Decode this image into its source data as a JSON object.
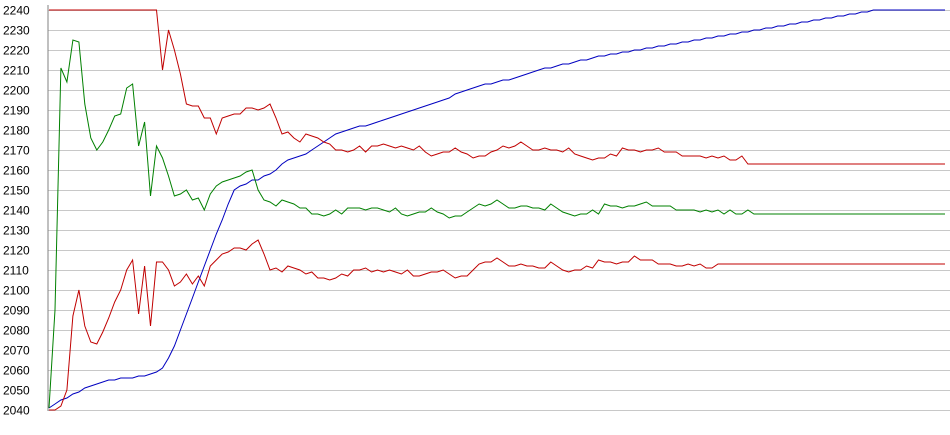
{
  "chart_data": {
    "type": "line",
    "title": "",
    "xlabel": "",
    "ylabel": "",
    "ylim": [
      2040,
      2240
    ],
    "yticks": [
      "2040",
      "2050",
      "2060",
      "2070",
      "2080",
      "2090",
      "2100",
      "2110",
      "2120",
      "2130",
      "2140",
      "2150",
      "2160",
      "2170",
      "2180",
      "2190",
      "2200",
      "2210",
      "2220",
      "2230",
      "2240"
    ],
    "grid": true,
    "x_count": 151,
    "series": [
      {
        "color": "#0000c0",
        "values": [
          2041,
          2043,
          2045,
          2046,
          2048,
          2049,
          2051,
          2052,
          2053,
          2054,
          2055,
          2055,
          2056,
          2056,
          2056,
          2057,
          2057,
          2058,
          2059,
          2061,
          2066,
          2072,
          2080,
          2088,
          2096,
          2104,
          2112,
          2120,
          2128,
          2135,
          2143,
          2150,
          2152,
          2153,
          2155,
          2155,
          2157,
          2158,
          2160,
          2163,
          2165,
          2166,
          2167,
          2168,
          2170,
          2172,
          2174,
          2176,
          2178,
          2179,
          2180,
          2181,
          2182,
          2182,
          2183,
          2184,
          2185,
          2186,
          2187,
          2188,
          2189,
          2190,
          2191,
          2192,
          2193,
          2194,
          2195,
          2196,
          2198,
          2199,
          2200,
          2201,
          2202,
          2203,
          2203,
          2204,
          2205,
          2205,
          2206,
          2207,
          2208,
          2209,
          2210,
          2211,
          2211,
          2212,
          2213,
          2213,
          2214,
          2215,
          2215,
          2216,
          2217,
          2217,
          2218,
          2218,
          2219,
          2219,
          2220,
          2220,
          2221,
          2221,
          2222,
          2222,
          2223,
          2223,
          2224,
          2224,
          2225,
          2225,
          2226,
          2226,
          2227,
          2227,
          2228,
          2228,
          2229,
          2229,
          2230,
          2230,
          2231,
          2231,
          2232,
          2232,
          2233,
          2233,
          2234,
          2234,
          2235,
          2235,
          2236,
          2236,
          2237,
          2237,
          2238,
          2238,
          2239,
          2239,
          2240,
          2240,
          2241,
          2241,
          2242,
          2242,
          2243,
          2243,
          2244,
          2244,
          2245,
          2245,
          2246
        ]
      },
      {
        "color": "#008000",
        "values": [
          2041,
          2090,
          2211,
          2204,
          2225,
          2224,
          2193,
          2176,
          2170,
          2174,
          2180,
          2187,
          2188,
          2201,
          2203,
          2172,
          2184,
          2147,
          2172,
          2166,
          2157,
          2147,
          2148,
          2150,
          2145,
          2146,
          2140,
          2148,
          2152,
          2154,
          2155,
          2156,
          2157,
          2159,
          2160,
          2150,
          2145,
          2144,
          2142,
          2145,
          2144,
          2143,
          2141,
          2141,
          2138,
          2138,
          2137,
          2138,
          2140,
          2138,
          2141,
          2141,
          2141,
          2140,
          2141,
          2141,
          2140,
          2139,
          2141,
          2138,
          2137,
          2138,
          2139,
          2139,
          2141,
          2139,
          2138,
          2136,
          2137,
          2137,
          2139,
          2141,
          2143,
          2142,
          2143,
          2145,
          2143,
          2141,
          2141,
          2142,
          2142,
          2141,
          2141,
          2140,
          2143,
          2141,
          2139,
          2138,
          2137,
          2138,
          2138,
          2140,
          2138,
          2143,
          2142,
          2142,
          2141,
          2142,
          2142,
          2143,
          2144,
          2142,
          2142,
          2142,
          2142,
          2140,
          2140,
          2140,
          2140,
          2139,
          2140,
          2139,
          2140,
          2138,
          2140,
          2138,
          2138,
          2140,
          2138,
          2138,
          2138,
          2138,
          2138,
          2138,
          2138,
          2138,
          2138,
          2138,
          2138,
          2138,
          2138,
          2138,
          2138,
          2138,
          2138,
          2138,
          2138,
          2138,
          2138,
          2138,
          2138,
          2138,
          2138,
          2138,
          2138,
          2138,
          2138,
          2138,
          2138,
          2138,
          2138
        ]
      },
      {
        "color": "#c00000",
        "values": [
          2240,
          2240,
          2240,
          2240,
          2240,
          2240,
          2240,
          2240,
          2240,
          2240,
          2240,
          2240,
          2240,
          2240,
          2240,
          2240,
          2240,
          2240,
          2240,
          2210,
          2230,
          2220,
          2208,
          2193,
          2192,
          2192,
          2186,
          2186,
          2178,
          2186,
          2187,
          2188,
          2188,
          2191,
          2191,
          2190,
          2191,
          2193,
          2186,
          2178,
          2179,
          2176,
          2174,
          2178,
          2177,
          2176,
          2174,
          2173,
          2170,
          2170,
          2169,
          2170,
          2172,
          2169,
          2172,
          2172,
          2173,
          2172,
          2171,
          2172,
          2171,
          2170,
          2172,
          2169,
          2167,
          2168,
          2169,
          2169,
          2171,
          2169,
          2168,
          2166,
          2167,
          2167,
          2169,
          2170,
          2172,
          2171,
          2172,
          2174,
          2172,
          2170,
          2170,
          2171,
          2170,
          2170,
          2169,
          2171,
          2168,
          2167,
          2166,
          2165,
          2166,
          2166,
          2168,
          2167,
          2171,
          2170,
          2170,
          2169,
          2170,
          2170,
          2171,
          2169,
          2169,
          2169,
          2167,
          2167,
          2167,
          2167,
          2166,
          2167,
          2166,
          2167,
          2165,
          2165,
          2167,
          2163,
          2163,
          2163,
          2163,
          2163,
          2163,
          2163,
          2163,
          2163,
          2163,
          2163,
          2163,
          2163,
          2163,
          2163,
          2163,
          2163,
          2163,
          2163,
          2163,
          2163,
          2163,
          2163,
          2163,
          2163,
          2163,
          2163,
          2163,
          2163,
          2163,
          2163,
          2163,
          2163,
          2163
        ]
      },
      {
        "color": "#c00000",
        "values": [
          2040,
          2040,
          2042,
          2050,
          2087,
          2100,
          2082,
          2074,
          2073,
          2079,
          2086,
          2094,
          2100,
          2110,
          2115,
          2088,
          2112,
          2082,
          2114,
          2114,
          2110,
          2102,
          2104,
          2108,
          2103,
          2107,
          2102,
          2112,
          2115,
          2118,
          2119,
          2121,
          2121,
          2120,
          2123,
          2125,
          2118,
          2110,
          2111,
          2109,
          2112,
          2111,
          2110,
          2108,
          2109,
          2106,
          2106,
          2105,
          2106,
          2108,
          2107,
          2110,
          2110,
          2111,
          2109,
          2110,
          2109,
          2110,
          2109,
          2108,
          2110,
          2107,
          2107,
          2108,
          2109,
          2109,
          2110,
          2108,
          2106,
          2107,
          2107,
          2110,
          2113,
          2114,
          2114,
          2116,
          2114,
          2112,
          2112,
          2113,
          2112,
          2112,
          2111,
          2111,
          2114,
          2112,
          2110,
          2109,
          2110,
          2110,
          2112,
          2111,
          2115,
          2114,
          2114,
          2113,
          2114,
          2114,
          2117,
          2115,
          2115,
          2115,
          2113,
          2113,
          2113,
          2112,
          2112,
          2113,
          2112,
          2113,
          2111,
          2111,
          2113,
          2113,
          2113,
          2113,
          2113,
          2113,
          2113,
          2113,
          2113,
          2113,
          2113,
          2113,
          2113,
          2113,
          2113,
          2113,
          2113,
          2113,
          2113,
          2113,
          2113,
          2113,
          2113,
          2113,
          2113,
          2113,
          2113,
          2113,
          2113,
          2113,
          2113,
          2113,
          2113,
          2113,
          2113,
          2113,
          2113,
          2113,
          2113
        ]
      }
    ]
  }
}
